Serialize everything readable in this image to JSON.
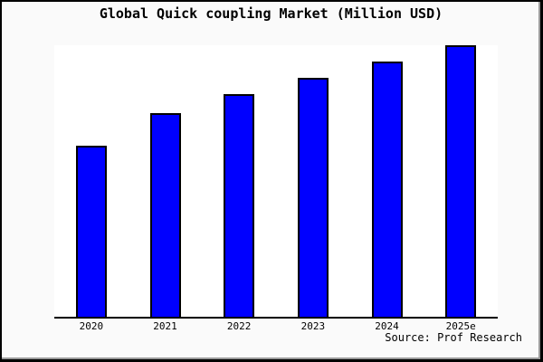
{
  "header": {
    "title": "Global Quick coupling Market (Million USD)"
  },
  "footer": {
    "source": "Source: Prof Research"
  },
  "colors": {
    "figure_bg": "#fafafa",
    "plot_bg": "#ffffff",
    "frame_border": "#000000",
    "bevel": "#999999",
    "bar_fill": "#0000ff",
    "bar_border": "#000000",
    "axis_line": "#000000",
    "text": "#000000"
  },
  "chart_data": {
    "type": "bar",
    "title": "Global Quick coupling Market (Million USD)",
    "categories": [
      "2020",
      "2021",
      "2022",
      "2023",
      "2024",
      "2025e"
    ],
    "values": [
      63,
      75,
      82,
      88,
      94,
      100
    ],
    "values_unit": "percent_of_max_bar (no numeric y-axis shown in chart)",
    "xlabel": "",
    "ylabel": "",
    "ylim": [
      0,
      100
    ],
    "grid": false,
    "legend": null,
    "y_axis_visible": false,
    "annotations": [
      "Source: Prof Research"
    ]
  }
}
